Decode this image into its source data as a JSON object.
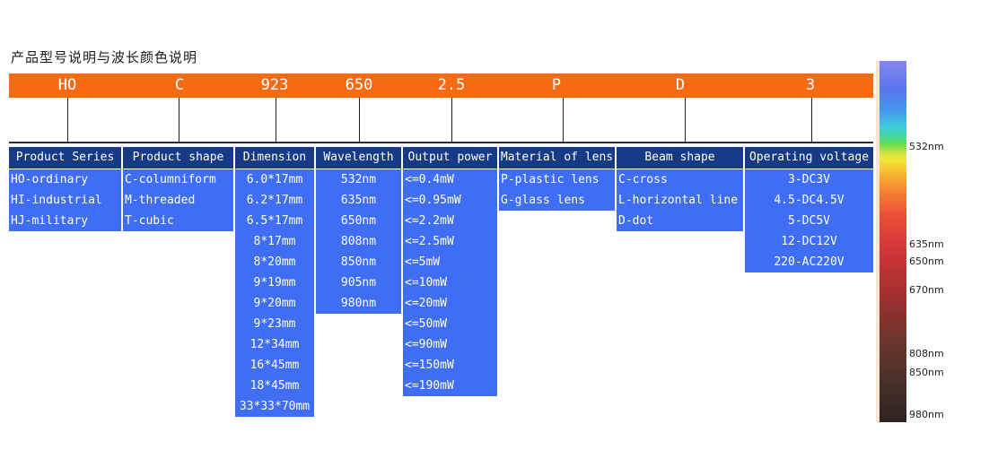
{
  "title": "产品型号说明与波长颜色说明",
  "code": [
    "HO",
    "C",
    "923",
    "650",
    "2.5",
    "P",
    "D",
    "3"
  ],
  "columns": [
    {
      "header": "Product Series",
      "align": "left",
      "items": [
        "HO-ordinary",
        "HI-industrial",
        "HJ-military"
      ]
    },
    {
      "header": "Product shape",
      "align": "left",
      "items": [
        "C-columniform",
        "M-threaded",
        "T-cubic"
      ]
    },
    {
      "header": "Dimension",
      "align": "center",
      "items": [
        "6.0*17mm",
        "6.2*17mm",
        "6.5*17mm",
        "8*17mm",
        "8*20mm",
        "9*19mm",
        "9*20mm",
        "9*23mm",
        "12*34mm",
        "16*45mm",
        "18*45mm",
        "33*33*70mm"
      ]
    },
    {
      "header": "Wavelength",
      "align": "center",
      "items": [
        "532nm",
        "635nm",
        "650nm",
        "808nm",
        "850nm",
        "905nm",
        "980nm"
      ]
    },
    {
      "header": "Output power",
      "align": "left",
      "items": [
        "<=0.4mW",
        "<=0.95mW",
        "<=2.2mW",
        "<=2.5mW",
        "<=5mW",
        "<=10mW",
        "<=20mW",
        "<=50mW",
        "<=90mW",
        "<=150mW",
        "<=190mW"
      ]
    },
    {
      "header": "Material of lens",
      "align": "left",
      "items": [
        "P-plastic lens",
        "G-glass lens"
      ]
    },
    {
      "header": "Beam shape",
      "align": "left",
      "items": [
        "C-cross",
        "L-horizontal line",
        "D-dot"
      ]
    },
    {
      "header": "Operating voltage",
      "align": "center",
      "items": [
        "3-DC3V",
        "4.5-DC4.5V",
        "5-DC5V",
        "12-DC12V",
        "220-AC220V"
      ]
    }
  ],
  "spectrum_labels": [
    "532nm",
    "635nm",
    "650nm",
    "670nm",
    "808nm",
    "850nm",
    "980nm"
  ],
  "colors": {
    "code_bar": "#f66a14",
    "header_bg": "#173a86",
    "cell_bg": "#3f6ef5"
  }
}
